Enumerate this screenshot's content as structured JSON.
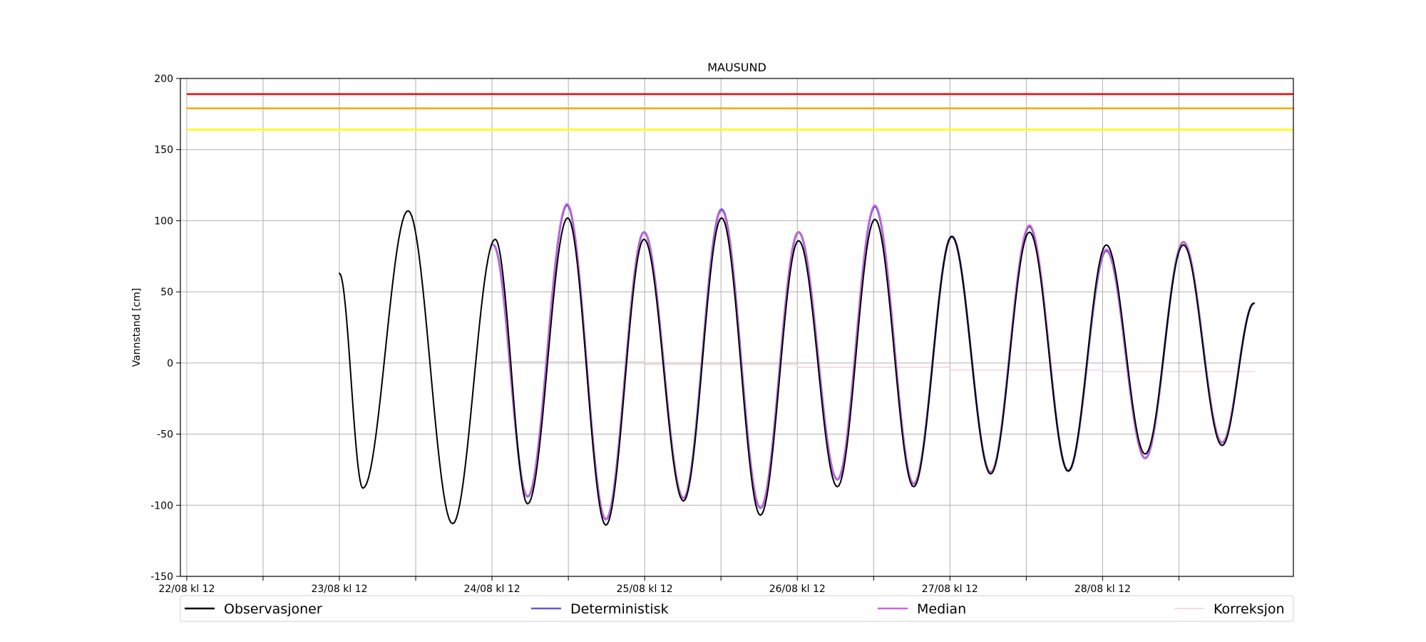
{
  "chart_data": {
    "type": "line",
    "title": "MAUSUND",
    "xlabel": "",
    "ylabel": "Vannstand [cm]",
    "ylim": [
      -150,
      200
    ],
    "yticks": [
      -150,
      -100,
      -50,
      0,
      50,
      100,
      150,
      200
    ],
    "xlim_hours": [
      -1,
      174
    ],
    "xticks": [
      {
        "hour": 0,
        "label": "22/08 kl 12"
      },
      {
        "hour": 12,
        "label": ""
      },
      {
        "hour": 24,
        "label": "23/08 kl 12"
      },
      {
        "hour": 36,
        "label": ""
      },
      {
        "hour": 48,
        "label": "24/08 kl 12"
      },
      {
        "hour": 60,
        "label": ""
      },
      {
        "hour": 72,
        "label": "25/08 kl 12"
      },
      {
        "hour": 84,
        "label": ""
      },
      {
        "hour": 96,
        "label": "26/08 kl 12"
      },
      {
        "hour": 108,
        "label": ""
      },
      {
        "hour": 120,
        "label": "27/08 kl 12"
      },
      {
        "hour": 132,
        "label": ""
      },
      {
        "hour": 144,
        "label": "28/08 kl 12"
      },
      {
        "hour": 156,
        "label": ""
      }
    ],
    "grid": true,
    "legend_position": "bottom",
    "thresholds": [
      {
        "value": 189,
        "color": "#ff0000"
      },
      {
        "value": 179,
        "color": "#ffa500"
      },
      {
        "value": 164,
        "color": "#ffff00"
      }
    ],
    "series": [
      {
        "name": "Observasjoner",
        "color": "#000000",
        "points": [
          [
            24,
            63
          ],
          [
            27.7,
            -88
          ],
          [
            34.8,
            107
          ],
          [
            41.8,
            -113
          ],
          [
            48.5,
            87
          ],
          [
            53.6,
            -99
          ],
          [
            59.9,
            102
          ],
          [
            65.9,
            -114
          ],
          [
            71.9,
            87
          ],
          [
            78.1,
            -97
          ],
          [
            84.1,
            102
          ],
          [
            90.2,
            -107
          ],
          [
            96.2,
            86
          ],
          [
            102.3,
            -87
          ],
          [
            108.2,
            101
          ],
          [
            114.3,
            -87
          ],
          [
            120.3,
            89
          ],
          [
            126.4,
            -78
          ],
          [
            132.5,
            92
          ],
          [
            138.6,
            -76
          ],
          [
            144.6,
            83
          ],
          [
            150.7,
            -64
          ],
          [
            156.7,
            83
          ],
          [
            162.8,
            -58
          ],
          [
            167.8,
            42
          ]
        ]
      },
      {
        "name": "Deterministisk",
        "color": "#6a5acd",
        "points": [
          [
            48.2,
            83
          ],
          [
            53.6,
            -94
          ],
          [
            59.8,
            111
          ],
          [
            65.9,
            -110
          ],
          [
            71.9,
            92
          ],
          [
            78.1,
            -95
          ],
          [
            84.1,
            108
          ],
          [
            90.2,
            -102
          ],
          [
            96.2,
            92
          ],
          [
            102.3,
            -82
          ],
          [
            108.2,
            110
          ],
          [
            114.3,
            -85
          ],
          [
            120.3,
            89
          ],
          [
            126.4,
            -77
          ],
          [
            132.5,
            96
          ],
          [
            138.6,
            -76
          ],
          [
            144.6,
            79
          ],
          [
            150.7,
            -67
          ],
          [
            156.7,
            85
          ],
          [
            162.8,
            -56
          ],
          [
            167.8,
            42
          ]
        ]
      },
      {
        "name": "Median",
        "color": "#cc66dd",
        "points": [
          [
            48.2,
            83
          ],
          [
            53.6,
            -94
          ],
          [
            59.8,
            112
          ],
          [
            65.9,
            -110
          ],
          [
            71.9,
            92
          ],
          [
            78.1,
            -95
          ],
          [
            84.1,
            107
          ],
          [
            90.2,
            -102
          ],
          [
            96.2,
            92
          ],
          [
            102.3,
            -82
          ],
          [
            108.2,
            111
          ],
          [
            114.3,
            -85
          ],
          [
            120.3,
            89
          ],
          [
            126.4,
            -77
          ],
          [
            132.5,
            97
          ],
          [
            138.6,
            -76
          ],
          [
            144.6,
            80
          ],
          [
            150.7,
            -67
          ],
          [
            156.7,
            85
          ],
          [
            162.8,
            -56
          ],
          [
            167.8,
            42
          ]
        ]
      },
      {
        "name": "Korreksjon",
        "color": "#f3c8cc",
        "points": [
          [
            48,
            1
          ],
          [
            72,
            1
          ],
          [
            72.1,
            -1
          ],
          [
            96,
            -1
          ],
          [
            96.1,
            -3
          ],
          [
            120,
            -3
          ],
          [
            120.1,
            -5
          ],
          [
            144,
            -5
          ],
          [
            144.1,
            -6
          ],
          [
            167.8,
            -6
          ]
        ]
      }
    ]
  }
}
